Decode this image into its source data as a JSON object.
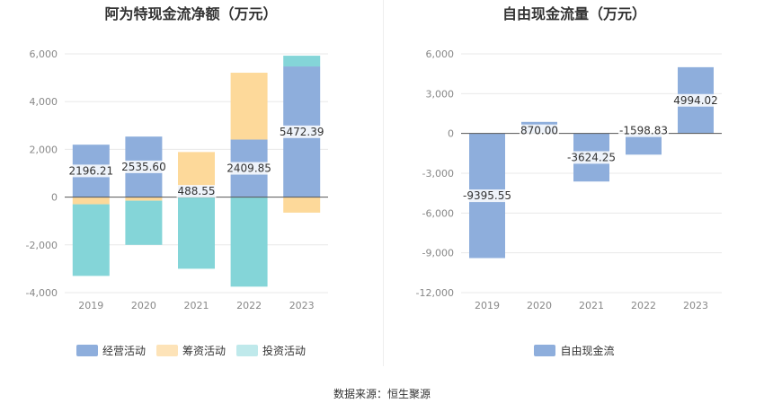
{
  "source_text": "数据来源：恒生聚源",
  "colors": {
    "operating": "#8eaedc",
    "financing": "#fdd99a",
    "investing": "#84d5d8",
    "fcf": "#8eaedc",
    "zero_line": "#555555",
    "grid": "#e8e8e8"
  },
  "chart_data": [
    {
      "type": "bar",
      "stacked": true,
      "title": "阿为特现金流净额（万元）",
      "categories": [
        "2019",
        "2020",
        "2021",
        "2022",
        "2023"
      ],
      "ylim": [
        -4000,
        6000
      ],
      "yticks": [
        "6,000",
        "4,000",
        "2,000",
        "0",
        "-2,000",
        "-4,000"
      ],
      "ytick_values": [
        6000,
        4000,
        2000,
        0,
        -2000,
        -4000
      ],
      "grid": true,
      "legend_position": "bottom",
      "series": [
        {
          "name": "经营活动",
          "color_key": "operating",
          "values": [
            2196.21,
            2535.6,
            488.55,
            2409.85,
            5472.39
          ],
          "labels": [
            "2196.21",
            "2535.60",
            "488.55",
            "2409.85",
            "5472.39"
          ]
        },
        {
          "name": "筹资活动",
          "color_key": "financing",
          "values": [
            -300,
            -150,
            1400,
            2800,
            -650
          ]
        },
        {
          "name": "投资活动",
          "color_key": "investing",
          "values": [
            -3000,
            -1850,
            -3000,
            -3750,
            450
          ]
        }
      ]
    },
    {
      "type": "bar",
      "title": "自由现金流量（万元）",
      "categories": [
        "2019",
        "2020",
        "2021",
        "2022",
        "2023"
      ],
      "ylim": [
        -12000,
        6000
      ],
      "yticks": [
        "6,000",
        "3,000",
        "0",
        "-3,000",
        "-6,000",
        "-9,000",
        "-12,000"
      ],
      "ytick_values": [
        6000,
        3000,
        0,
        -3000,
        -6000,
        -9000,
        -12000
      ],
      "grid": true,
      "legend_position": "bottom",
      "series": [
        {
          "name": "自由现金流",
          "color_key": "fcf",
          "values": [
            -9395.55,
            870.0,
            -3624.25,
            -1598.83,
            4994.02
          ],
          "labels": [
            "-9395.55",
            "870.00",
            "-3624.25",
            "-1598.83",
            "4994.02"
          ]
        }
      ]
    }
  ]
}
